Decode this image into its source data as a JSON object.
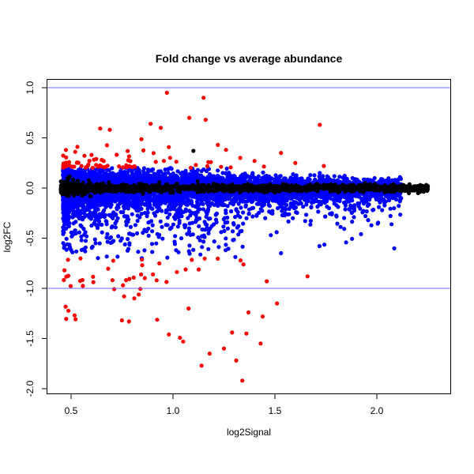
{
  "chart_data": {
    "type": "scatter",
    "title": "Fold change vs average abundance",
    "xlabel": "log2Signal",
    "ylabel": "log2FC",
    "xlim": [
      0.38,
      2.36
    ],
    "ylim": [
      -2.0,
      1.0
    ],
    "xticks": [
      0.5,
      1.0,
      1.5,
      2.0
    ],
    "xtick_labels": [
      "0.5",
      "1.0",
      "1.5",
      "2.0"
    ],
    "yticks": [
      -2.0,
      -1.5,
      -1.0,
      -0.5,
      0.0,
      0.5,
      1.0
    ],
    "ytick_labels": [
      "-2.0",
      "-1.5",
      "-1.0",
      "-0.5",
      "0.0",
      "0.5",
      "1.0"
    ],
    "hlines": [
      1.0,
      -1.0
    ],
    "grid": false,
    "colors": {
      "blue": "#0000ff",
      "red": "#ff0000",
      "black": "#000000",
      "hline": "#6a6aff"
    },
    "clouds": {
      "blue": {
        "n": 6000,
        "seed": 7,
        "x_range": [
          0.46,
          2.12
        ]
      },
      "black": {
        "n": 1600,
        "seed": 11,
        "x_range": [
          0.45,
          2.25
        ]
      }
    },
    "outliers": {
      "red": [
        [
          0.97,
          0.95
        ],
        [
          1.15,
          0.9
        ],
        [
          1.72,
          0.63
        ],
        [
          1.08,
          0.7
        ],
        [
          1.16,
          0.68
        ],
        [
          0.89,
          0.64
        ],
        [
          0.69,
          0.58
        ],
        [
          0.94,
          0.6
        ],
        [
          1.34,
          -1.92
        ],
        [
          1.14,
          -1.77
        ],
        [
          1.66,
          -0.88
        ],
        [
          1.31,
          -1.72
        ],
        [
          1.43,
          -1.55
        ],
        [
          1.46,
          -0.93
        ],
        [
          1.51,
          -1.15
        ],
        [
          1.25,
          -1.6
        ],
        [
          1.18,
          -1.65
        ],
        [
          1.05,
          -1.53
        ],
        [
          0.98,
          -1.46
        ],
        [
          1.36,
          -1.45
        ],
        [
          0.76,
          -1.08
        ],
        [
          0.81,
          -1.1
        ],
        [
          1.37,
          -1.24
        ],
        [
          1.29,
          -1.44
        ],
        [
          1.44,
          -1.28
        ],
        [
          1.53,
          0.35
        ],
        [
          1.6,
          0.25
        ],
        [
          1.74,
          0.22
        ],
        [
          1.33,
          0.3
        ],
        [
          1.4,
          0.27
        ],
        [
          1.22,
          0.43
        ],
        [
          1.26,
          0.38
        ],
        [
          0.6,
          0.33
        ],
        [
          0.65,
          0.28
        ]
      ],
      "black": [
        [
          2.25,
          0.01
        ],
        [
          2.22,
          -0.03
        ],
        [
          2.18,
          0.0
        ],
        [
          1.1,
          0.37
        ]
      ],
      "blue": [
        [
          1.53,
          -0.65
        ],
        [
          1.48,
          -0.47
        ],
        [
          1.78,
          -0.25
        ],
        [
          1.98,
          -0.22
        ],
        [
          2.01,
          -0.19
        ],
        [
          2.03,
          -0.12
        ],
        [
          0.57,
          -0.44
        ],
        [
          0.62,
          -0.55
        ]
      ]
    }
  }
}
